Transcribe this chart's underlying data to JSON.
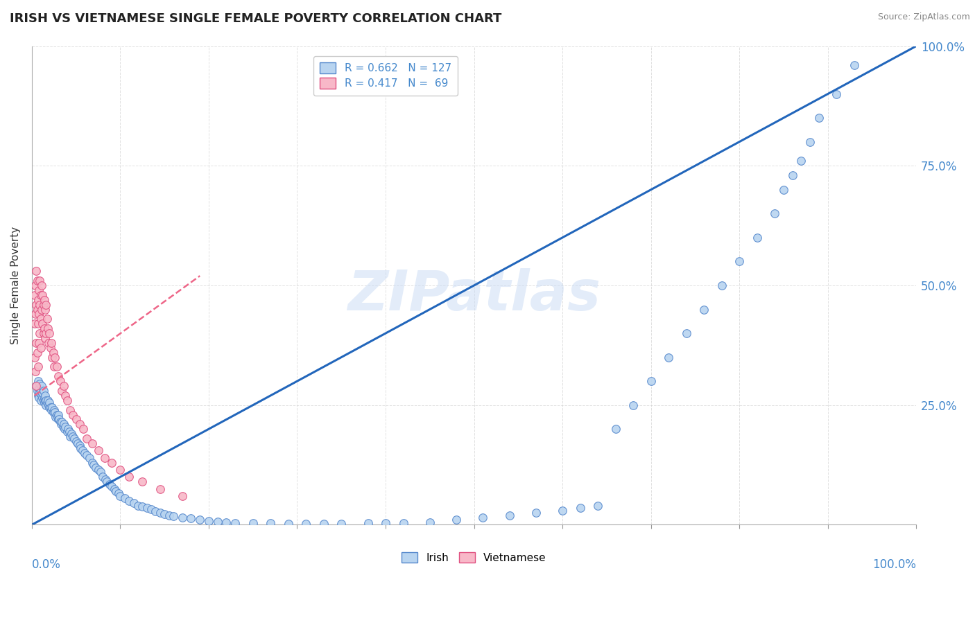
{
  "title": "IRISH VS VIETNAMESE SINGLE FEMALE POVERTY CORRELATION CHART",
  "source": "Source: ZipAtlas.com",
  "ylabel": "Single Female Poverty",
  "watermark": "ZIPatlas",
  "irish_color": "#b8d4f0",
  "irish_edge_color": "#5588cc",
  "vietnamese_color": "#f8b8c8",
  "vietnamese_edge_color": "#e05080",
  "irish_line_color": "#2266bb",
  "vietnamese_line_color": "#ee6688",
  "grid_color": "#cccccc",
  "axis_label_color": "#4488cc",
  "background_color": "#ffffff",
  "irish_R": 0.662,
  "irish_N": 127,
  "vietnamese_R": 0.417,
  "vietnamese_N": 69,
  "xlim": [
    0.0,
    1.0
  ],
  "ylim": [
    0.0,
    1.0
  ],
  "irish_line_x": [
    0.0,
    1.0
  ],
  "irish_line_y": [
    0.0,
    1.0
  ],
  "viet_line_x": [
    0.003,
    0.19
  ],
  "viet_line_y": [
    0.27,
    0.52
  ],
  "irish_scatter_x": [
    0.005,
    0.006,
    0.007,
    0.007,
    0.008,
    0.008,
    0.009,
    0.009,
    0.01,
    0.01,
    0.011,
    0.011,
    0.012,
    0.012,
    0.013,
    0.013,
    0.014,
    0.014,
    0.015,
    0.015,
    0.016,
    0.016,
    0.017,
    0.018,
    0.019,
    0.02,
    0.02,
    0.021,
    0.022,
    0.023,
    0.024,
    0.025,
    0.026,
    0.027,
    0.028,
    0.029,
    0.03,
    0.03,
    0.031,
    0.032,
    0.033,
    0.034,
    0.035,
    0.036,
    0.037,
    0.038,
    0.04,
    0.041,
    0.042,
    0.043,
    0.045,
    0.046,
    0.048,
    0.05,
    0.052,
    0.054,
    0.055,
    0.057,
    0.06,
    0.062,
    0.065,
    0.068,
    0.07,
    0.072,
    0.075,
    0.078,
    0.08,
    0.083,
    0.085,
    0.088,
    0.09,
    0.093,
    0.095,
    0.098,
    0.1,
    0.105,
    0.11,
    0.115,
    0.12,
    0.125,
    0.13,
    0.135,
    0.14,
    0.145,
    0.15,
    0.155,
    0.16,
    0.17,
    0.18,
    0.19,
    0.2,
    0.21,
    0.22,
    0.23,
    0.25,
    0.27,
    0.29,
    0.31,
    0.33,
    0.35,
    0.38,
    0.4,
    0.42,
    0.45,
    0.48,
    0.51,
    0.54,
    0.57,
    0.6,
    0.62,
    0.64,
    0.66,
    0.68,
    0.7,
    0.72,
    0.74,
    0.76,
    0.78,
    0.8,
    0.82,
    0.84,
    0.85,
    0.86,
    0.87,
    0.88,
    0.89,
    0.91,
    0.93
  ],
  "irish_scatter_y": [
    0.29,
    0.28,
    0.27,
    0.3,
    0.265,
    0.285,
    0.275,
    0.295,
    0.26,
    0.28,
    0.27,
    0.29,
    0.265,
    0.275,
    0.26,
    0.28,
    0.255,
    0.265,
    0.26,
    0.27,
    0.25,
    0.26,
    0.255,
    0.26,
    0.25,
    0.245,
    0.255,
    0.245,
    0.24,
    0.245,
    0.235,
    0.24,
    0.235,
    0.225,
    0.23,
    0.225,
    0.22,
    0.23,
    0.22,
    0.215,
    0.21,
    0.215,
    0.205,
    0.21,
    0.2,
    0.205,
    0.195,
    0.2,
    0.195,
    0.185,
    0.19,
    0.185,
    0.18,
    0.175,
    0.17,
    0.165,
    0.16,
    0.155,
    0.15,
    0.145,
    0.14,
    0.13,
    0.125,
    0.12,
    0.115,
    0.11,
    0.1,
    0.095,
    0.09,
    0.085,
    0.08,
    0.075,
    0.07,
    0.065,
    0.06,
    0.055,
    0.05,
    0.045,
    0.04,
    0.038,
    0.035,
    0.032,
    0.028,
    0.025,
    0.022,
    0.02,
    0.018,
    0.015,
    0.013,
    0.01,
    0.008,
    0.006,
    0.005,
    0.004,
    0.003,
    0.003,
    0.002,
    0.002,
    0.002,
    0.002,
    0.003,
    0.003,
    0.004,
    0.005,
    0.01,
    0.015,
    0.02,
    0.025,
    0.03,
    0.035,
    0.04,
    0.2,
    0.25,
    0.3,
    0.35,
    0.4,
    0.45,
    0.5,
    0.55,
    0.6,
    0.65,
    0.7,
    0.73,
    0.76,
    0.8,
    0.85,
    0.9,
    0.96
  ],
  "viet_scatter_x": [
    0.003,
    0.003,
    0.003,
    0.004,
    0.004,
    0.004,
    0.005,
    0.005,
    0.005,
    0.005,
    0.006,
    0.006,
    0.006,
    0.007,
    0.007,
    0.007,
    0.008,
    0.008,
    0.008,
    0.009,
    0.009,
    0.009,
    0.01,
    0.01,
    0.01,
    0.011,
    0.011,
    0.012,
    0.012,
    0.013,
    0.013,
    0.014,
    0.014,
    0.015,
    0.015,
    0.016,
    0.016,
    0.017,
    0.018,
    0.019,
    0.02,
    0.021,
    0.022,
    0.023,
    0.024,
    0.025,
    0.026,
    0.028,
    0.03,
    0.032,
    0.034,
    0.036,
    0.038,
    0.04,
    0.043,
    0.046,
    0.05,
    0.054,
    0.058,
    0.062,
    0.068,
    0.075,
    0.082,
    0.09,
    0.1,
    0.11,
    0.125,
    0.145,
    0.17
  ],
  "viet_scatter_y": [
    0.42,
    0.48,
    0.35,
    0.44,
    0.5,
    0.32,
    0.46,
    0.53,
    0.38,
    0.29,
    0.45,
    0.51,
    0.36,
    0.47,
    0.42,
    0.33,
    0.49,
    0.44,
    0.38,
    0.51,
    0.46,
    0.4,
    0.48,
    0.43,
    0.37,
    0.5,
    0.45,
    0.48,
    0.42,
    0.46,
    0.4,
    0.47,
    0.41,
    0.45,
    0.39,
    0.46,
    0.4,
    0.43,
    0.41,
    0.38,
    0.4,
    0.37,
    0.38,
    0.35,
    0.36,
    0.33,
    0.35,
    0.33,
    0.31,
    0.3,
    0.28,
    0.29,
    0.27,
    0.26,
    0.24,
    0.23,
    0.22,
    0.21,
    0.2,
    0.18,
    0.17,
    0.155,
    0.14,
    0.13,
    0.115,
    0.1,
    0.09,
    0.075,
    0.06
  ]
}
